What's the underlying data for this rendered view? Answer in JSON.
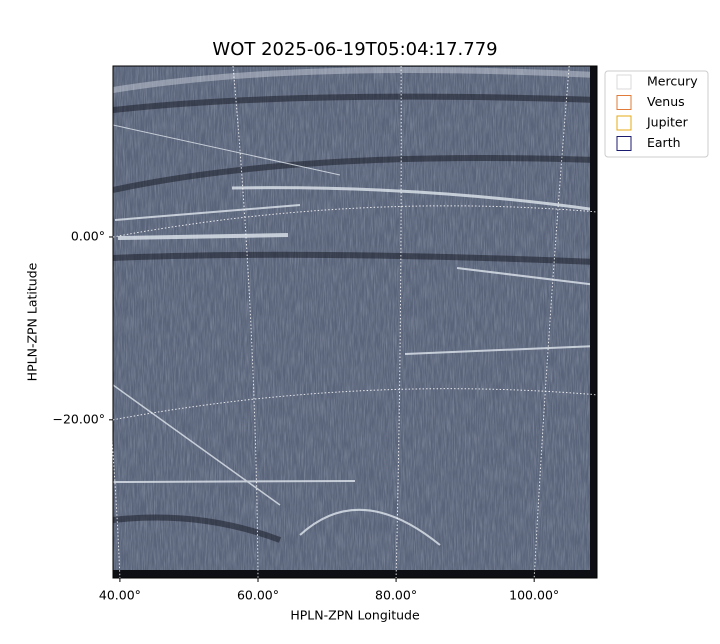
{
  "chart_data": {
    "type": "image",
    "title": "WOT 2025-06-19T05:04:17.779",
    "x_label": "HPLN-ZPN Longitude",
    "y_label": "HPLN-ZPN Latitude",
    "xlim": [
      39,
      109.1
    ],
    "ylim": [
      -37.3,
      18.7
    ],
    "xticks": [
      {
        "value": 40,
        "label": "40.00°"
      },
      {
        "value": 60,
        "label": "60.00°"
      },
      {
        "value": 80,
        "label": "80.00°"
      },
      {
        "value": 100,
        "label": "100.00°"
      }
    ],
    "yticks": [
      {
        "value": -20,
        "label": "−20.00°"
      },
      {
        "value": 0,
        "label": "0.00°"
      }
    ],
    "grid": true,
    "legend_position": "outside-right",
    "series": [
      {
        "name": "Mercury",
        "color": "#d9d9d9"
      },
      {
        "name": "Venus",
        "color": "#e07b39"
      },
      {
        "name": "Jupiter",
        "color": "#e6a817"
      },
      {
        "name": "Earth",
        "color": "#1a1a6e"
      }
    ]
  }
}
